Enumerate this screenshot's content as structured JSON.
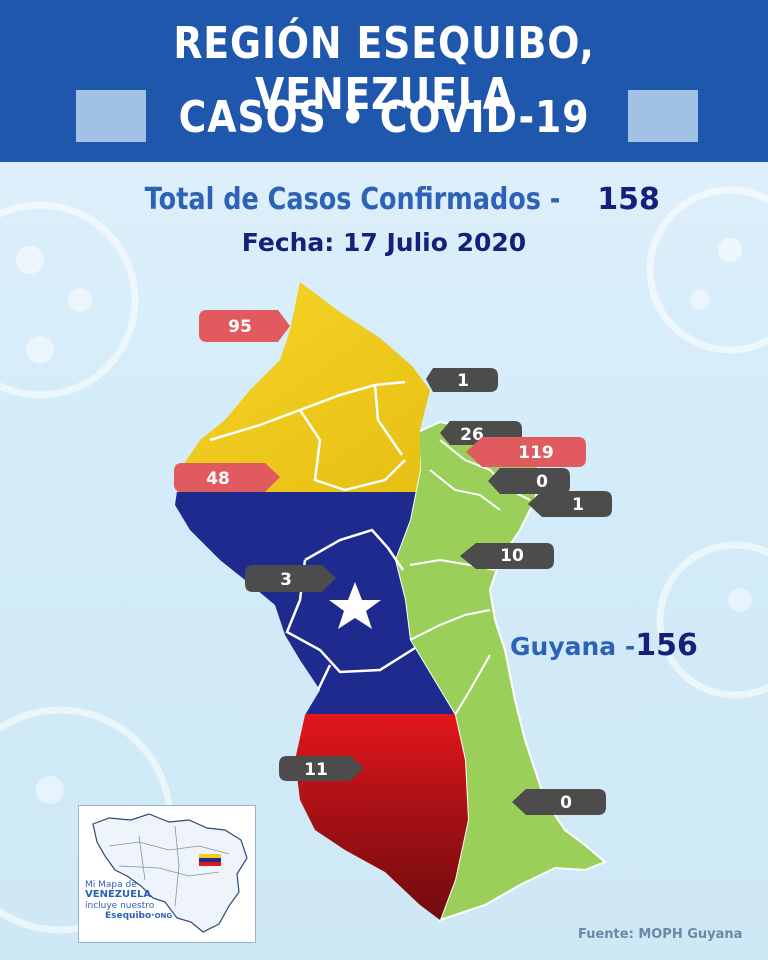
{
  "header": {
    "title_line1": "REGIÓN ESEQUIBO, VENEZUELA",
    "title_line2": "CASOS • COVID-19"
  },
  "summary": {
    "total_label": "Total de Casos Confirmados - ",
    "total_value": "158",
    "date_text": "Fecha: 17 Julio 2020"
  },
  "guyana": {
    "label": "Guyana -",
    "value": "156"
  },
  "callouts": [
    {
      "value": "95",
      "style": "red"
    },
    {
      "value": "1",
      "style": "gray"
    },
    {
      "value": "48",
      "style": "red"
    },
    {
      "value": "26",
      "style": "gray"
    },
    {
      "value": "119",
      "style": "red"
    },
    {
      "value": "0",
      "style": "gray"
    },
    {
      "value": "1",
      "style": "gray"
    },
    {
      "value": "10",
      "style": "gray"
    },
    {
      "value": "3",
      "style": "gray"
    },
    {
      "value": "11",
      "style": "gray"
    },
    {
      "value": "0",
      "style": "gray"
    }
  ],
  "inset": {
    "line1": "Mi Mapa de",
    "line2": "VENEZUELA",
    "line3": "incluye nuestro",
    "line4": "Esequibo",
    "line5": "ONG"
  },
  "source": "Fuente: MOPH Guyana",
  "colors": {
    "header": "#1f57ad",
    "yellow": "#f1cd1a",
    "blue": "#1e2a8e",
    "red": "#d81a1f",
    "green": "#9ad05a",
    "callout_red": "#e05a5f",
    "callout_gray": "#4c4c4c",
    "text_dark_blue": "#14217a"
  }
}
